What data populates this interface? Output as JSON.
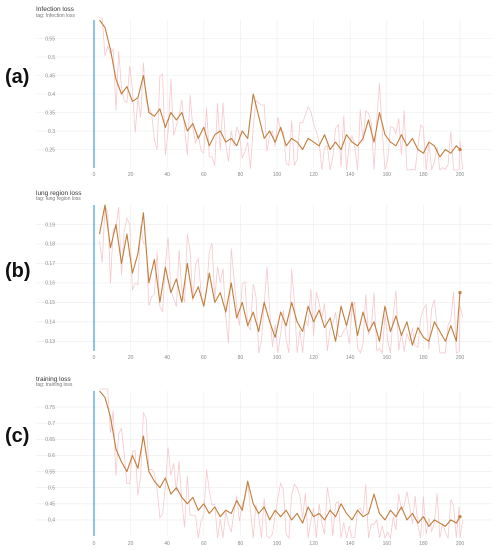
{
  "chart_data": [
    {
      "type": "line",
      "panel_label": "(a)",
      "title": "Infection loss",
      "tag": "tag: Infection loss",
      "xlim": [
        0,
        200
      ],
      "ylim": [
        0.2,
        0.6
      ],
      "xticks": [
        0,
        20,
        40,
        60,
        80,
        100,
        120,
        140,
        160,
        180,
        200
      ],
      "yticks": [
        0.25,
        0.3,
        0.35,
        0.4,
        0.45,
        0.5,
        0.55
      ],
      "ytick_labels": [
        "0.25",
        "0.3",
        "0.35",
        "0.4",
        "0.45",
        "0.5",
        "0.55"
      ],
      "grid": true,
      "colors": {
        "smoothed": "#c17d3a",
        "raw": "#f6c9cf",
        "axis": "#1e8ad6",
        "grid": "#ececec"
      },
      "series": [
        {
          "role": "smoothed",
          "x": [
            3,
            6,
            9,
            12,
            15,
            18,
            21,
            24,
            27,
            30,
            33,
            36,
            39,
            42,
            45,
            48,
            51,
            54,
            57,
            60,
            63,
            66,
            69,
            72,
            75,
            78,
            81,
            84,
            87,
            90,
            93,
            96,
            99,
            102,
            105,
            108,
            111,
            114,
            117,
            120,
            123,
            126,
            129,
            132,
            135,
            138,
            141,
            144,
            147,
            150,
            153,
            156,
            159,
            162,
            165,
            168,
            171,
            174,
            177,
            180,
            183,
            186,
            189,
            192,
            195,
            198,
            200
          ],
          "y": [
            0.61,
            0.58,
            0.52,
            0.44,
            0.4,
            0.42,
            0.38,
            0.39,
            0.45,
            0.35,
            0.34,
            0.36,
            0.31,
            0.35,
            0.33,
            0.35,
            0.3,
            0.32,
            0.28,
            0.31,
            0.26,
            0.29,
            0.3,
            0.27,
            0.28,
            0.26,
            0.3,
            0.28,
            0.4,
            0.34,
            0.28,
            0.3,
            0.27,
            0.31,
            0.26,
            0.28,
            0.27,
            0.25,
            0.28,
            0.27,
            0.26,
            0.29,
            0.25,
            0.27,
            0.25,
            0.29,
            0.27,
            0.26,
            0.28,
            0.33,
            0.27,
            0.35,
            0.29,
            0.27,
            0.26,
            0.29,
            0.26,
            0.28,
            0.25,
            0.24,
            0.27,
            0.26,
            0.23,
            0.25,
            0.24,
            0.26,
            0.25
          ]
        }
      ]
    },
    {
      "type": "line",
      "panel_label": "(b)",
      "title": "lung region loss",
      "tag": "tag: lung region loss",
      "xlim": [
        0,
        200
      ],
      "ylim": [
        0.125,
        0.2
      ],
      "xticks": [
        0,
        20,
        40,
        60,
        80,
        100,
        120,
        140,
        160,
        180,
        200
      ],
      "yticks": [
        0.13,
        0.14,
        0.15,
        0.16,
        0.17,
        0.18,
        0.19
      ],
      "ytick_labels": [
        "0.13",
        "0.14",
        "0.15",
        "0.16",
        "0.17",
        "0.18",
        "0.19"
      ],
      "grid": true,
      "colors": {
        "smoothed": "#c17d3a",
        "raw": "#f6c9cf",
        "axis": "#1e8ad6",
        "grid": "#ececec"
      },
      "series": [
        {
          "role": "smoothed",
          "x": [
            3,
            6,
            9,
            12,
            15,
            18,
            21,
            24,
            27,
            30,
            33,
            36,
            39,
            42,
            45,
            48,
            51,
            54,
            57,
            60,
            63,
            66,
            69,
            72,
            75,
            78,
            81,
            84,
            87,
            90,
            93,
            96,
            99,
            102,
            105,
            108,
            111,
            114,
            117,
            120,
            123,
            126,
            129,
            132,
            135,
            138,
            141,
            144,
            147,
            150,
            153,
            156,
            159,
            162,
            165,
            168,
            171,
            174,
            177,
            180,
            183,
            186,
            189,
            192,
            195,
            198,
            200
          ],
          "y": [
            0.185,
            0.2,
            0.178,
            0.19,
            0.17,
            0.185,
            0.165,
            0.175,
            0.196,
            0.16,
            0.172,
            0.15,
            0.168,
            0.155,
            0.162,
            0.15,
            0.17,
            0.152,
            0.158,
            0.148,
            0.165,
            0.15,
            0.155,
            0.145,
            0.16,
            0.142,
            0.15,
            0.138,
            0.145,
            0.135,
            0.15,
            0.14,
            0.132,
            0.145,
            0.138,
            0.15,
            0.14,
            0.135,
            0.148,
            0.14,
            0.146,
            0.137,
            0.142,
            0.13,
            0.148,
            0.138,
            0.15,
            0.133,
            0.145,
            0.135,
            0.14,
            0.13,
            0.148,
            0.135,
            0.143,
            0.133,
            0.14,
            0.128,
            0.137,
            0.132,
            0.13,
            0.14,
            0.135,
            0.13,
            0.138,
            0.13,
            0.155
          ]
        }
      ]
    },
    {
      "type": "line",
      "panel_label": "(c)",
      "title": "training loss",
      "tag": "tag: training loss",
      "xlim": [
        0,
        200
      ],
      "ylim": [
        0.35,
        0.8
      ],
      "xticks": [
        0,
        20,
        40,
        60,
        80,
        100,
        120,
        140,
        160,
        180,
        200
      ],
      "yticks": [
        0.4,
        0.45,
        0.5,
        0.55,
        0.6,
        0.65,
        0.7,
        0.75
      ],
      "ytick_labels": [
        "0.4",
        "0.45",
        "0.5",
        "0.55",
        "0.6",
        "0.65",
        "0.7",
        "0.75"
      ],
      "grid": true,
      "colors": {
        "smoothed": "#c17d3a",
        "raw": "#f6c9cf",
        "axis": "#1e8ad6",
        "grid": "#ececec"
      },
      "series": [
        {
          "role": "smoothed",
          "x": [
            3,
            6,
            9,
            12,
            15,
            18,
            21,
            24,
            27,
            30,
            33,
            36,
            39,
            42,
            45,
            48,
            51,
            54,
            57,
            60,
            63,
            66,
            69,
            72,
            75,
            78,
            81,
            84,
            87,
            90,
            93,
            96,
            99,
            102,
            105,
            108,
            111,
            114,
            117,
            120,
            123,
            126,
            129,
            132,
            135,
            138,
            141,
            144,
            147,
            150,
            153,
            156,
            159,
            162,
            165,
            168,
            171,
            174,
            177,
            180,
            183,
            186,
            189,
            192,
            195,
            198,
            200
          ],
          "y": [
            0.8,
            0.78,
            0.72,
            0.62,
            0.58,
            0.55,
            0.6,
            0.56,
            0.66,
            0.55,
            0.52,
            0.5,
            0.53,
            0.48,
            0.5,
            0.47,
            0.45,
            0.47,
            0.43,
            0.45,
            0.42,
            0.44,
            0.41,
            0.43,
            0.42,
            0.46,
            0.43,
            0.52,
            0.45,
            0.42,
            0.44,
            0.4,
            0.43,
            0.41,
            0.43,
            0.4,
            0.42,
            0.39,
            0.44,
            0.41,
            0.42,
            0.4,
            0.43,
            0.41,
            0.45,
            0.42,
            0.4,
            0.43,
            0.41,
            0.42,
            0.48,
            0.42,
            0.4,
            0.43,
            0.41,
            0.44,
            0.4,
            0.42,
            0.39,
            0.41,
            0.38,
            0.4,
            0.39,
            0.38,
            0.4,
            0.39,
            0.41
          ]
        }
      ]
    }
  ]
}
